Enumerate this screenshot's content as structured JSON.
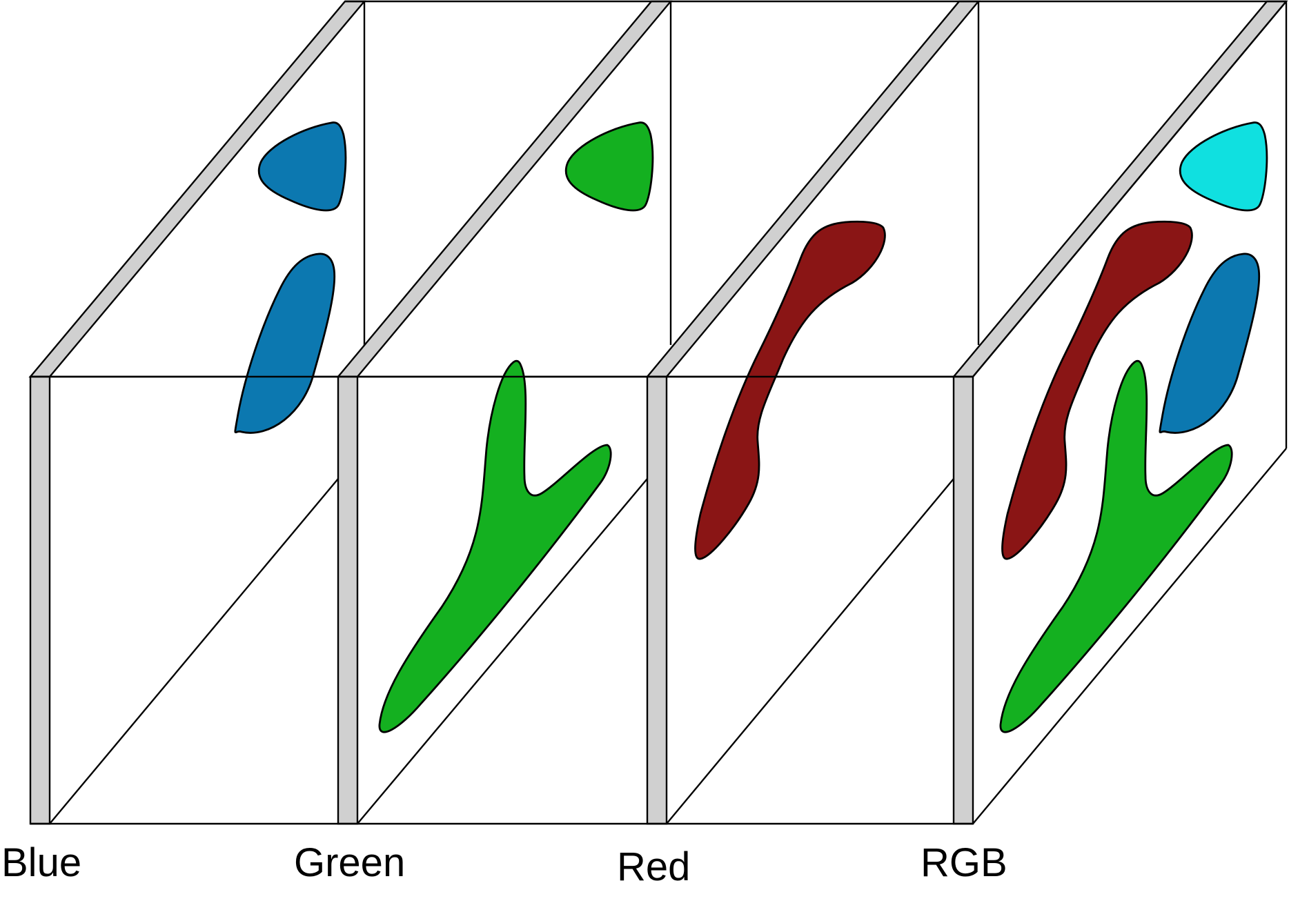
{
  "labels": {
    "blue": "Blue",
    "green": "Green",
    "red": "Red",
    "rgb": "RGB"
  },
  "colors": {
    "slab": "#d0d0d0",
    "outline": "#000000",
    "blue_channel": "#0c78b0",
    "green_channel": "#14b020",
    "red_channel": "#8a1515",
    "cyan_composite": "#10e0e0",
    "background": "#ffffff"
  }
}
